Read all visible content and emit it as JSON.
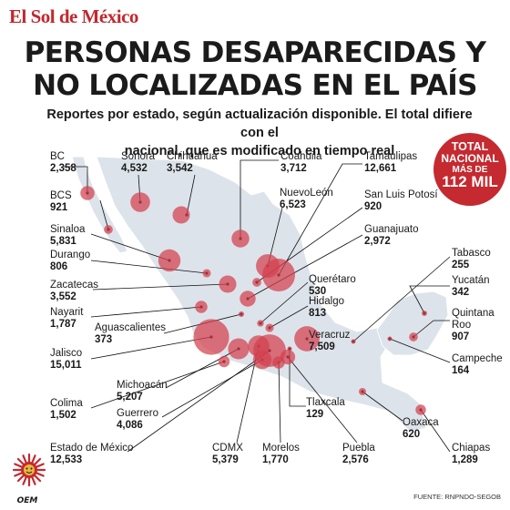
{
  "header": {
    "logo": "El Sol de México",
    "title_line1": "PERSONAS DESAPARECIDAS Y",
    "title_line2": "NO LOCALIZADAS EN EL PAÍS",
    "subtitle_line1": "Reportes por estado, según actualización disponible. El total difiere con el",
    "subtitle_line2": "nacional, que es modificado en tiempo real"
  },
  "badge": {
    "line1": "TOTAL",
    "line2": "NACIONAL",
    "line3": "MÁS DE",
    "line4": "112 MIL"
  },
  "colors": {
    "accent": "#c42a30",
    "bubble": "#d2404e",
    "map_fill": "#dde3ea",
    "map_stroke": "#ffffff"
  },
  "states": [
    {
      "name": "BC",
      "value": "2,358"
    },
    {
      "name": "Sonora",
      "value": "4,532"
    },
    {
      "name": "Chihuahua",
      "value": "3,542"
    },
    {
      "name": "Coahuila",
      "value": "3,712"
    },
    {
      "name": "Tamaulipas",
      "value": "12,661"
    },
    {
      "name": "BCS",
      "value": "921"
    },
    {
      "name": "NuevoLeón",
      "value": "6,523"
    },
    {
      "name": "San Luis Potosí",
      "value": "920"
    },
    {
      "name": "Sinaloa",
      "value": "5,831"
    },
    {
      "name": "Guanajuato",
      "value": "2,972"
    },
    {
      "name": "Durango",
      "value": "806"
    },
    {
      "name": "Tabasco",
      "value": "255"
    },
    {
      "name": "Zacatecas",
      "value": "3,552"
    },
    {
      "name": "Querétaro",
      "value": "530"
    },
    {
      "name": "Yucatán",
      "value": "342"
    },
    {
      "name": "Nayarit",
      "value": "1,787"
    },
    {
      "name": "Hidalgo",
      "value": "813"
    },
    {
      "name": "Quintana Roo",
      "value": "907"
    },
    {
      "name": "Aguascalientes",
      "value": "373"
    },
    {
      "name": "Veracruz",
      "value": "7,509"
    },
    {
      "name": "Campeche",
      "value": "164"
    },
    {
      "name": "Jalisco",
      "value": "15,011"
    },
    {
      "name": "Michoacán",
      "value": "5,207"
    },
    {
      "name": "Guerrero",
      "value": "4,086"
    },
    {
      "name": "Colima",
      "value": "1,502"
    },
    {
      "name": "Tlaxcala",
      "value": "129"
    },
    {
      "name": "Oaxaca",
      "value": "620"
    },
    {
      "name": "Estado de México",
      "value": "12,533"
    },
    {
      "name": "CDMX",
      "value": "5,379"
    },
    {
      "name": "Morelos",
      "value": "1,770"
    },
    {
      "name": "Puebla",
      "value": "2,576"
    },
    {
      "name": "Chiapas",
      "value": "1,289"
    }
  ],
  "footer": {
    "source": "FUENTE: RNPNDO-SEGOB",
    "brand": "OEM"
  }
}
